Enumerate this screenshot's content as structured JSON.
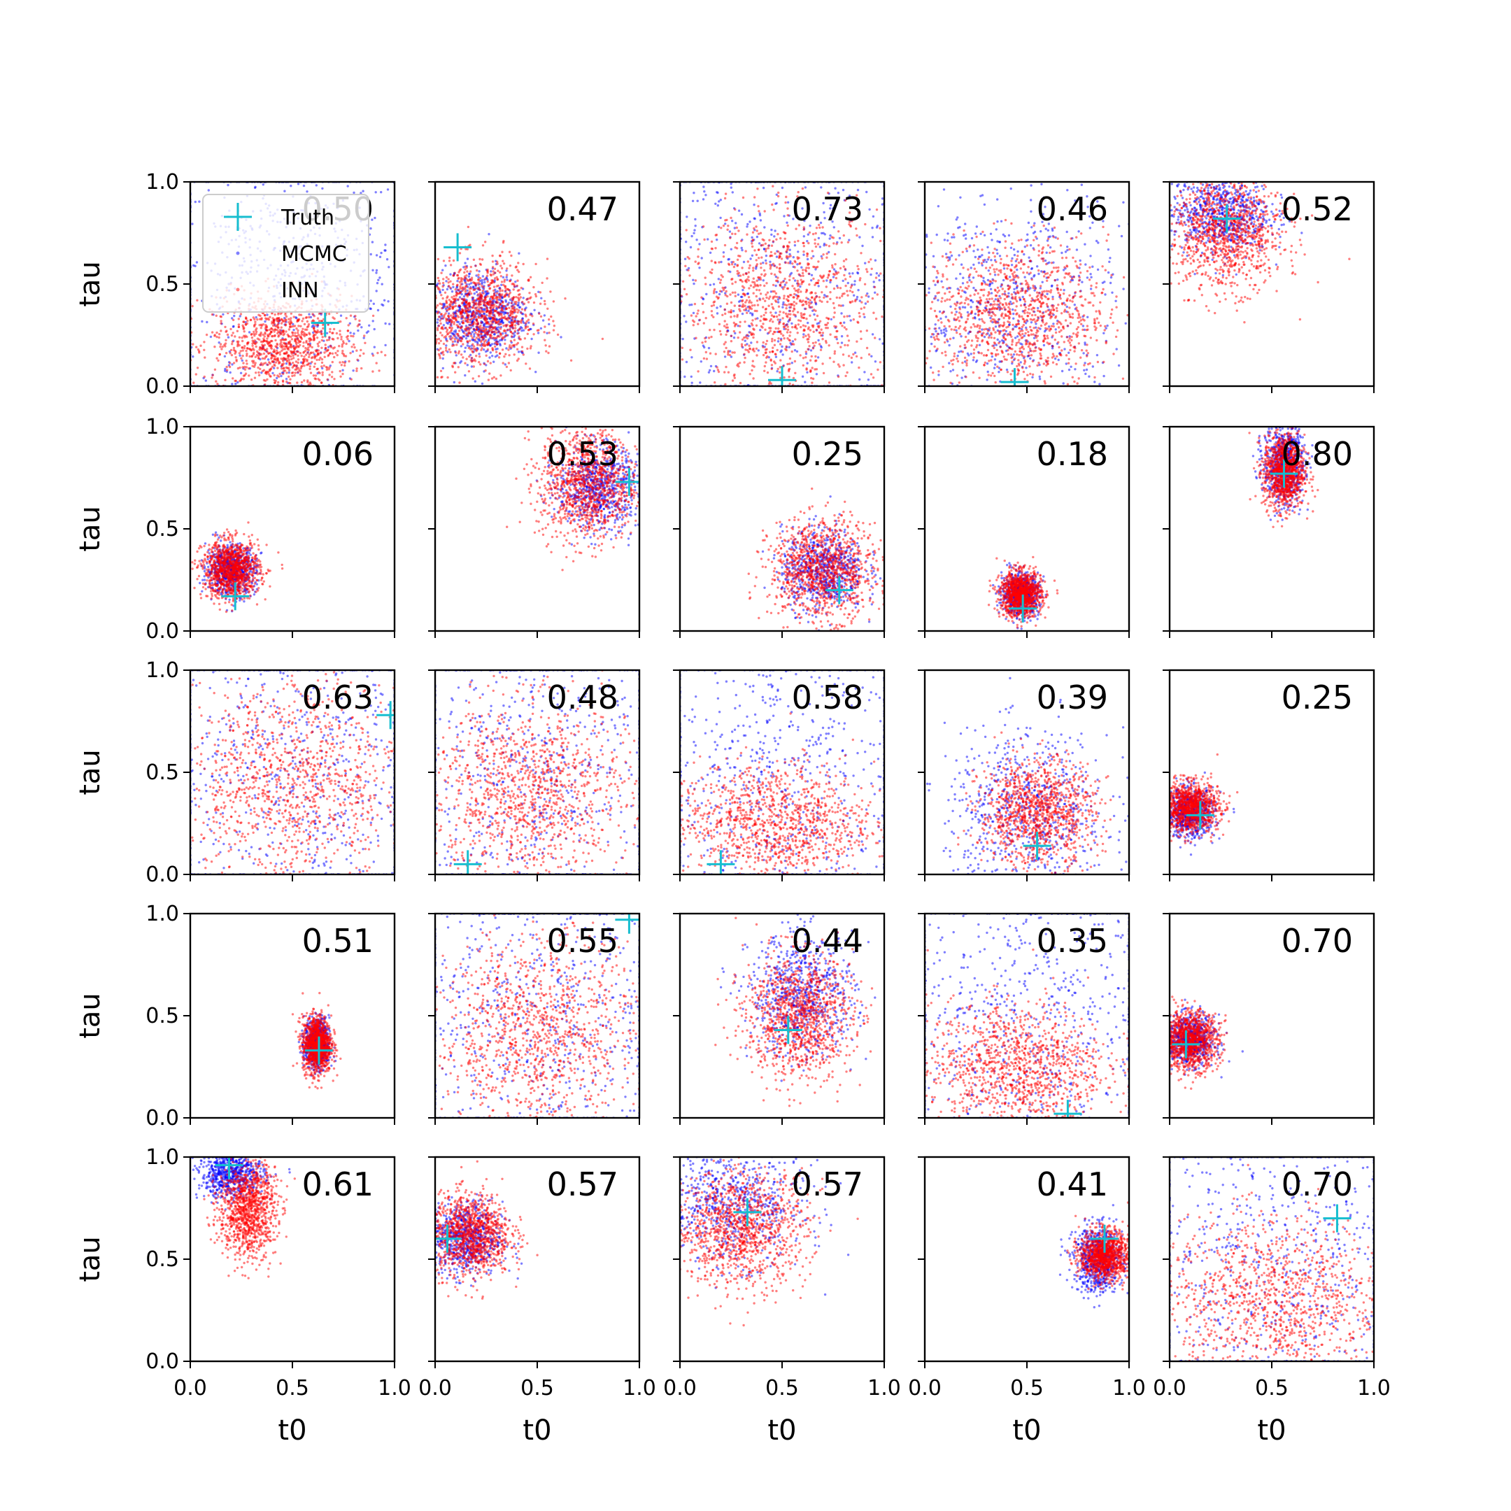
{
  "chart_data": {
    "type": "scatter",
    "xlabel": "t0",
    "ylabel": "tau",
    "xlim": [
      0,
      1
    ],
    "ylim": [
      0,
      1
    ],
    "xticks": [
      "0.0",
      "0.5",
      "1.0"
    ],
    "yticks": [
      "0.0",
      "0.5",
      "1.0"
    ],
    "grid": false,
    "legend": {
      "placement": "top-left of first panel",
      "entries": [
        {
          "name": "Truth",
          "marker": "plus",
          "color": "#17becf"
        },
        {
          "name": "MCMC",
          "marker": "dot",
          "color": "#0000ff"
        },
        {
          "name": "INN",
          "marker": "dot",
          "color": "#ff0000"
        }
      ]
    },
    "colors": {
      "truth": "#17becf",
      "mcmc": "#0000ff",
      "inn": "#ff0000"
    },
    "panels": [
      {
        "value": "0.50",
        "truth": [
          0.66,
          0.31
        ],
        "inn": {
          "cx": 0.45,
          "cy": 0.2,
          "sx": 0.17,
          "sy": 0.12
        },
        "mcmc": {
          "cx": 0.5,
          "cy": 0.5,
          "sx": 0.35,
          "sy": 0.35
        }
      },
      {
        "value": "0.47",
        "truth": [
          0.11,
          0.68
        ],
        "inn": {
          "cx": 0.22,
          "cy": 0.35,
          "sx": 0.14,
          "sy": 0.13
        },
        "mcmc": {
          "cx": 0.22,
          "cy": 0.35,
          "sx": 0.12,
          "sy": 0.11
        }
      },
      {
        "value": "0.73",
        "truth": [
          0.5,
          0.03
        ],
        "inn": {
          "cx": 0.5,
          "cy": 0.4,
          "sx": 0.25,
          "sy": 0.22
        },
        "mcmc": {
          "cx": 0.5,
          "cy": 0.5,
          "sx": 0.4,
          "sy": 0.4
        }
      },
      {
        "value": "0.46",
        "truth": [
          0.44,
          0.02
        ],
        "inn": {
          "cx": 0.45,
          "cy": 0.35,
          "sx": 0.22,
          "sy": 0.18
        },
        "mcmc": {
          "cx": 0.4,
          "cy": 0.4,
          "sx": 0.3,
          "sy": 0.3
        }
      },
      {
        "value": "0.52",
        "truth": [
          0.28,
          0.82
        ],
        "inn": {
          "cx": 0.28,
          "cy": 0.75,
          "sx": 0.14,
          "sy": 0.14
        },
        "mcmc": {
          "cx": 0.25,
          "cy": 0.85,
          "sx": 0.12,
          "sy": 0.1
        }
      },
      {
        "value": "0.06",
        "truth": [
          0.22,
          0.17
        ],
        "inn": {
          "cx": 0.2,
          "cy": 0.3,
          "sx": 0.07,
          "sy": 0.07
        },
        "mcmc": {
          "cx": 0.2,
          "cy": 0.3,
          "sx": 0.06,
          "sy": 0.06
        }
      },
      {
        "value": "0.53",
        "truth": [
          0.95,
          0.73
        ],
        "inn": {
          "cx": 0.75,
          "cy": 0.72,
          "sx": 0.12,
          "sy": 0.14
        },
        "mcmc": {
          "cx": 0.8,
          "cy": 0.7,
          "sx": 0.1,
          "sy": 0.1
        }
      },
      {
        "value": "0.25",
        "truth": [
          0.78,
          0.2
        ],
        "inn": {
          "cx": 0.7,
          "cy": 0.3,
          "sx": 0.13,
          "sy": 0.12
        },
        "mcmc": {
          "cx": 0.7,
          "cy": 0.3,
          "sx": 0.1,
          "sy": 0.1
        }
      },
      {
        "value": "0.18",
        "truth": [
          0.48,
          0.11
        ],
        "inn": {
          "cx": 0.47,
          "cy": 0.18,
          "sx": 0.05,
          "sy": 0.055
        },
        "mcmc": {
          "cx": 0.47,
          "cy": 0.18,
          "sx": 0.045,
          "sy": 0.05
        }
      },
      {
        "value": "0.80",
        "truth": [
          0.56,
          0.77
        ],
        "inn": {
          "cx": 0.56,
          "cy": 0.78,
          "sx": 0.05,
          "sy": 0.09
        },
        "mcmc": {
          "cx": 0.56,
          "cy": 0.82,
          "sx": 0.05,
          "sy": 0.1
        }
      },
      {
        "value": "0.63",
        "truth": [
          0.98,
          0.78
        ],
        "inn": {
          "cx": 0.5,
          "cy": 0.45,
          "sx": 0.28,
          "sy": 0.25
        },
        "mcmc": {
          "cx": 0.55,
          "cy": 0.5,
          "sx": 0.4,
          "sy": 0.4
        }
      },
      {
        "value": "0.48",
        "truth": [
          0.16,
          0.05
        ],
        "inn": {
          "cx": 0.45,
          "cy": 0.4,
          "sx": 0.25,
          "sy": 0.22
        },
        "mcmc": {
          "cx": 0.5,
          "cy": 0.5,
          "sx": 0.4,
          "sy": 0.4
        }
      },
      {
        "value": "0.58",
        "truth": [
          0.2,
          0.05
        ],
        "inn": {
          "cx": 0.45,
          "cy": 0.25,
          "sx": 0.25,
          "sy": 0.15
        },
        "mcmc": {
          "cx": 0.5,
          "cy": 0.5,
          "sx": 0.4,
          "sy": 0.35
        }
      },
      {
        "value": "0.39",
        "truth": [
          0.55,
          0.14
        ],
        "inn": {
          "cx": 0.55,
          "cy": 0.3,
          "sx": 0.14,
          "sy": 0.13
        },
        "mcmc": {
          "cx": 0.5,
          "cy": 0.3,
          "sx": 0.2,
          "sy": 0.2
        }
      },
      {
        "value": "0.25",
        "truth": [
          0.15,
          0.29
        ],
        "inn": {
          "cx": 0.1,
          "cy": 0.33,
          "sx": 0.07,
          "sy": 0.06
        },
        "mcmc": {
          "cx": 0.1,
          "cy": 0.3,
          "sx": 0.06,
          "sy": 0.06
        }
      },
      {
        "value": "0.51",
        "truth": [
          0.63,
          0.33
        ],
        "inn": {
          "cx": 0.62,
          "cy": 0.36,
          "sx": 0.035,
          "sy": 0.07
        },
        "mcmc": {
          "cx": 0.62,
          "cy": 0.36,
          "sx": 0.03,
          "sy": 0.06
        }
      },
      {
        "value": "0.55",
        "truth": [
          0.95,
          0.97
        ],
        "inn": {
          "cx": 0.5,
          "cy": 0.4,
          "sx": 0.25,
          "sy": 0.25
        },
        "mcmc": {
          "cx": 0.5,
          "cy": 0.5,
          "sx": 0.4,
          "sy": 0.4
        }
      },
      {
        "value": "0.44",
        "truth": [
          0.53,
          0.43
        ],
        "inn": {
          "cx": 0.58,
          "cy": 0.5,
          "sx": 0.13,
          "sy": 0.15
        },
        "mcmc": {
          "cx": 0.6,
          "cy": 0.6,
          "sx": 0.13,
          "sy": 0.15
        }
      },
      {
        "value": "0.35",
        "truth": [
          0.7,
          0.02
        ],
        "inn": {
          "cx": 0.45,
          "cy": 0.25,
          "sx": 0.22,
          "sy": 0.16
        },
        "mcmc": {
          "cx": 0.5,
          "cy": 0.5,
          "sx": 0.4,
          "sy": 0.35
        }
      },
      {
        "value": "0.70",
        "truth": [
          0.08,
          0.36
        ],
        "inn": {
          "cx": 0.1,
          "cy": 0.38,
          "sx": 0.07,
          "sy": 0.07
        },
        "mcmc": {
          "cx": 0.1,
          "cy": 0.38,
          "sx": 0.06,
          "sy": 0.06
        }
      },
      {
        "value": "0.61",
        "truth": [
          0.19,
          0.96
        ],
        "inn": {
          "cx": 0.28,
          "cy": 0.75,
          "sx": 0.07,
          "sy": 0.12
        },
        "mcmc": {
          "cx": 0.2,
          "cy": 0.92,
          "sx": 0.08,
          "sy": 0.06
        }
      },
      {
        "value": "0.57",
        "truth": [
          0.06,
          0.6
        ],
        "inn": {
          "cx": 0.17,
          "cy": 0.62,
          "sx": 0.1,
          "sy": 0.1
        },
        "mcmc": {
          "cx": 0.15,
          "cy": 0.6,
          "sx": 0.09,
          "sy": 0.09
        }
      },
      {
        "value": "0.57",
        "truth": [
          0.33,
          0.73
        ],
        "inn": {
          "cx": 0.3,
          "cy": 0.65,
          "sx": 0.16,
          "sy": 0.14
        },
        "mcmc": {
          "cx": 0.25,
          "cy": 0.78,
          "sx": 0.18,
          "sy": 0.15
        }
      },
      {
        "value": "0.41",
        "truth": [
          0.88,
          0.6
        ],
        "inn": {
          "cx": 0.88,
          "cy": 0.52,
          "sx": 0.06,
          "sy": 0.06
        },
        "mcmc": {
          "cx": 0.85,
          "cy": 0.5,
          "sx": 0.06,
          "sy": 0.08
        }
      },
      {
        "value": "0.70",
        "truth": [
          0.82,
          0.7
        ],
        "inn": {
          "cx": 0.5,
          "cy": 0.3,
          "sx": 0.28,
          "sy": 0.2
        },
        "mcmc": {
          "cx": 0.5,
          "cy": 0.5,
          "sx": 0.4,
          "sy": 0.4
        }
      }
    ]
  }
}
